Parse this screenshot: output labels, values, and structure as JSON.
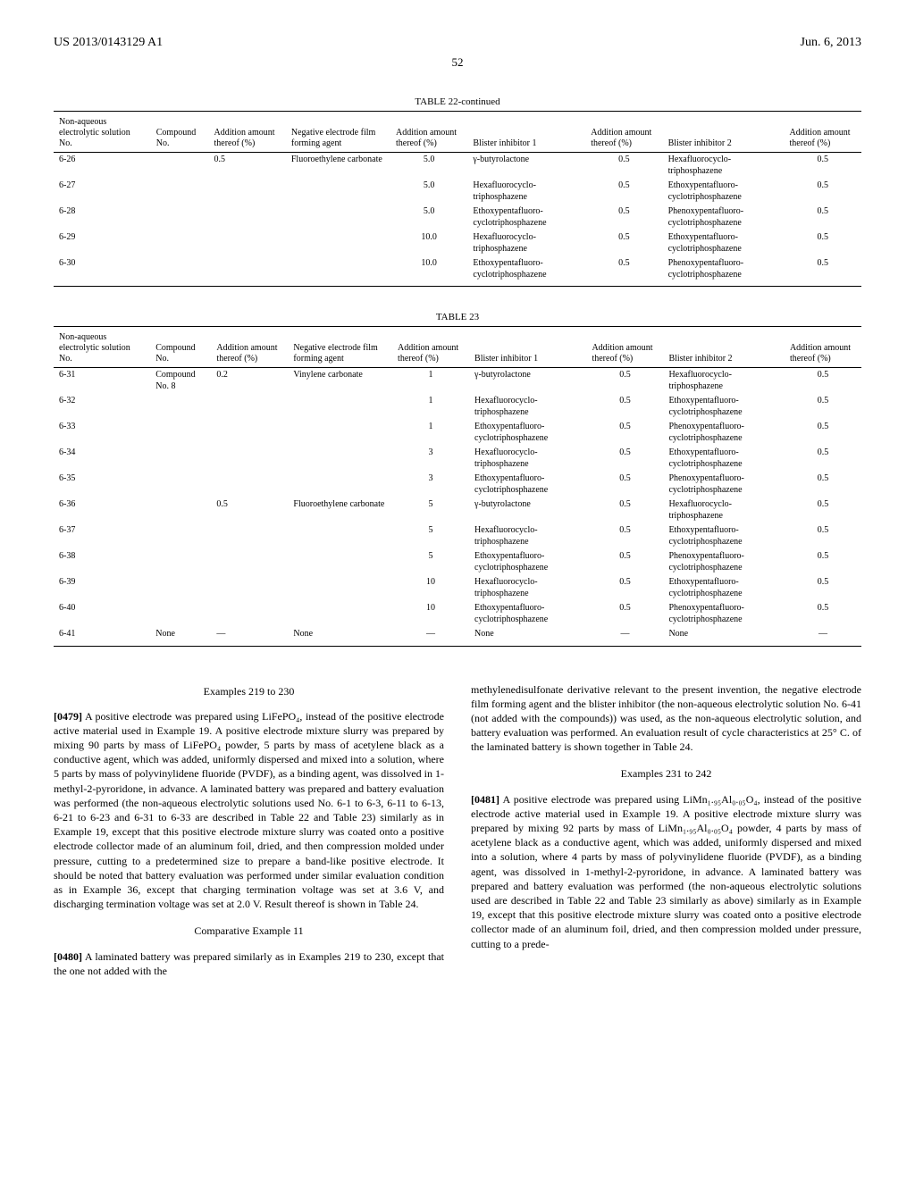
{
  "header": {
    "patent_no": "US 2013/0143129 A1",
    "date": "Jun. 6, 2013",
    "page": "52"
  },
  "table22": {
    "caption": "TABLE 22-continued",
    "columns": [
      "Non-aqueous electrolytic solution No.",
      "Compound No.",
      "Addition amount thereof (%)",
      "Negative electrode film forming agent",
      "Addition amount thereof (%)",
      "Blister inhibitor 1",
      "Addition amount thereof (%)",
      "Blister inhibitor 2",
      "Addition amount thereof (%)"
    ],
    "rows": [
      [
        "6-26",
        "",
        "0.5",
        "Fluoroethylene carbonate",
        "5.0",
        "γ-butyrolactone",
        "0.5",
        "Hexafluorocyclo-triphosphazene",
        "0.5"
      ],
      [
        "6-27",
        "",
        "",
        "",
        "5.0",
        "Hexafluorocyclo-triphosphazene",
        "0.5",
        "Ethoxypentafluoro-cyclotriphosphazene",
        "0.5"
      ],
      [
        "6-28",
        "",
        "",
        "",
        "5.0",
        "Ethoxypentafluoro-cyclotriphosphazene",
        "0.5",
        "Phenoxypentafluoro-cyclotriphosphazene",
        "0.5"
      ],
      [
        "6-29",
        "",
        "",
        "",
        "10.0",
        "Hexafluorocyclo-triphosphazene",
        "0.5",
        "Ethoxypentafluoro-cyclotriphosphazene",
        "0.5"
      ],
      [
        "6-30",
        "",
        "",
        "",
        "10.0",
        "Ethoxypentafluoro-cyclotriphosphazene",
        "0.5",
        "Phenoxypentafluoro-cyclotriphosphazene",
        "0.5"
      ]
    ]
  },
  "table23": {
    "caption": "TABLE 23",
    "columns": [
      "Non-aqueous electrolytic solution No.",
      "Compound No.",
      "Addition amount thereof (%)",
      "Negative electrode film forming agent",
      "Addition amount thereof (%)",
      "Blister inhibitor 1",
      "Addition amount thereof (%)",
      "Blister inhibitor 2",
      "Addition amount thereof (%)"
    ],
    "rows": [
      [
        "6-31",
        "Compound No. 8",
        "0.2",
        "Vinylene carbonate",
        "1",
        "γ-butyrolactone",
        "0.5",
        "Hexafluorocyclo-triphosphazene",
        "0.5"
      ],
      [
        "6-32",
        "",
        "",
        "",
        "1",
        "Hexafluorocyclo-triphosphazene",
        "0.5",
        "Ethoxypentafluoro-cyclotriphosphazene",
        "0.5"
      ],
      [
        "6-33",
        "",
        "",
        "",
        "1",
        "Ethoxypentafluoro-cyclotriphosphazene",
        "0.5",
        "Phenoxypentafluoro-cyclotriphosphazene",
        "0.5"
      ],
      [
        "6-34",
        "",
        "",
        "",
        "3",
        "Hexafluorocyclo-triphosphazene",
        "0.5",
        "Ethoxypentafluoro-cyclotriphosphazene",
        "0.5"
      ],
      [
        "6-35",
        "",
        "",
        "",
        "3",
        "Ethoxypentafluoro-cyclotriphosphazene",
        "0.5",
        "Phenoxypentafluoro-cyclotriphosphazene",
        "0.5"
      ],
      [
        "6-36",
        "",
        "0.5",
        "Fluoroethylene carbonate",
        "5",
        "γ-butyrolactone",
        "0.5",
        "Hexafluorocyclo-triphosphazene",
        "0.5"
      ],
      [
        "6-37",
        "",
        "",
        "",
        "5",
        "Hexafluorocyclo-triphosphazene",
        "0.5",
        "Ethoxypentafluoro-cyclotriphosphazene",
        "0.5"
      ],
      [
        "6-38",
        "",
        "",
        "",
        "5",
        "Ethoxypentafluoro-cyclotriphosphazene",
        "0.5",
        "Phenoxypentafluoro-cyclotriphosphazene",
        "0.5"
      ],
      [
        "6-39",
        "",
        "",
        "",
        "10",
        "Hexafluorocyclo-triphosphazene",
        "0.5",
        "Ethoxypentafluoro-cyclotriphosphazene",
        "0.5"
      ],
      [
        "6-40",
        "",
        "",
        "",
        "10",
        "Ethoxypentafluoro-cyclotriphosphazene",
        "0.5",
        "Phenoxypentafluoro-cyclotriphosphazene",
        "0.5"
      ],
      [
        "6-41",
        "None",
        "—",
        "None",
        "—",
        "None",
        "—",
        "None",
        "—"
      ]
    ]
  },
  "body": {
    "ex219_heading": "Examples 219 to 230",
    "p0479_num": "[0479]",
    "p0479": "A positive electrode was prepared using LiFePO₄, instead of the positive electrode active material used in Example 19. A positive electrode mixture slurry was prepared by mixing 90 parts by mass of LiFePO₄ powder, 5 parts by mass of acetylene black as a conductive agent, which was added, uniformly dispersed and mixed into a solution, where 5 parts by mass of polyvinylidene fluoride (PVDF), as a binding agent, was dissolved in 1-methyl-2-pyroridone, in advance. A laminated battery was prepared and battery evaluation was performed (the non-aqueous electrolytic solutions used No. 6-1 to 6-3, 6-11 to 6-13, 6-21 to 6-23 and 6-31 to 6-33 are described in Table 22 and Table 23) similarly as in Example 19, except that this positive electrode mixture slurry was coated onto a positive electrode collector made of an aluminum foil, dried, and then compression molded under pressure, cutting to a predetermined size to prepare a band-like positive electrode. It should be noted that battery evaluation was performed under similar evaluation condition as in Example 36, except that charging termination voltage was set at 3.6 V, and discharging termination voltage was set at 2.0 V. Result thereof is shown in Table 24.",
    "ce11_heading": "Comparative Example 11",
    "p0480_num": "[0480]",
    "p0480": "A laminated battery was prepared similarly as in Examples 219 to 230, except that the one not added with the",
    "right_top": "methylenedisulfonate derivative relevant to the present invention, the negative electrode film forming agent and the blister inhibitor (the non-aqueous electrolytic solution No. 6-41 (not added with the compounds)) was used, as the non-aqueous electrolytic solution, and battery evaluation was performed. An evaluation result of cycle characteristics at 25° C. of the laminated battery is shown together in Table 24.",
    "ex231_heading": "Examples 231 to 242",
    "p0481_num": "[0481]",
    "p0481": "A positive electrode was prepared using LiMn₁.₉₅Al₀.₀₅O₄, instead of the positive electrode active material used in Example 19. A positive electrode mixture slurry was prepared by mixing 92 parts by mass of LiMn₁.₉₅Al₀.₀₅O₄ powder, 4 parts by mass of acetylene black as a conductive agent, which was added, uniformly dispersed and mixed into a solution, where 4 parts by mass of polyvinylidene fluoride (PVDF), as a binding agent, was dissolved in 1-methyl-2-pyroridone, in advance. A laminated battery was prepared and battery evaluation was performed (the non-aqueous electrolytic solutions used are described in Table 22 and Table 23 similarly as above) similarly as in Example 19, except that this positive electrode mixture slurry was coated onto a positive electrode collector made of an aluminum foil, dried, and then compression molded under pressure, cutting to a prede-"
  }
}
